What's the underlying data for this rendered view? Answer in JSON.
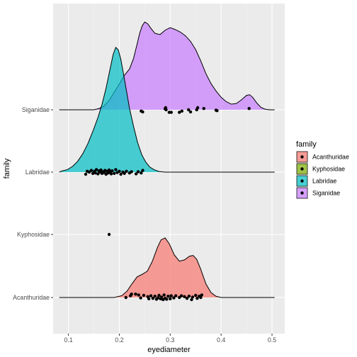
{
  "chart_data": {
    "type": "ridgeline",
    "xlabel": "eyediameter",
    "ylabel": "family",
    "xlim": [
      0.07,
      0.525
    ],
    "x_ticks": [
      "0.1",
      "0.2",
      "0.3",
      "0.4",
      "0.5"
    ],
    "x_tick_values": [
      0.1,
      0.2,
      0.3,
      0.4,
      0.5
    ],
    "legend": {
      "title": "family",
      "position": "right",
      "items": [
        "Acanthuridae",
        "Kyphosidae",
        "Labridae",
        "Siganidae"
      ]
    },
    "colors": {
      "Acanthuridae": "#F8766D",
      "Kyphosidae": "#7CAE00",
      "Labridae": "#00BFC4",
      "Siganidae": "#C77CFF",
      "panel": "#EBEBEB",
      "grid_major": "#FFFFFF",
      "grid_minor": "#F4F4F4"
    },
    "series": [
      {
        "name": "Acanthuridae",
        "baseline_x": [
          0.082,
          0.505
        ],
        "density": [
          [
            0.082,
            0
          ],
          [
            0.19,
            0
          ],
          [
            0.205,
            0.03
          ],
          [
            0.215,
            0.1
          ],
          [
            0.225,
            0.22
          ],
          [
            0.235,
            0.33
          ],
          [
            0.245,
            0.37
          ],
          [
            0.255,
            0.42
          ],
          [
            0.265,
            0.58
          ],
          [
            0.275,
            0.8
          ],
          [
            0.282,
            0.92
          ],
          [
            0.29,
            0.95
          ],
          [
            0.298,
            0.86
          ],
          [
            0.308,
            0.68
          ],
          [
            0.318,
            0.58
          ],
          [
            0.328,
            0.6
          ],
          [
            0.338,
            0.66
          ],
          [
            0.345,
            0.67
          ],
          [
            0.352,
            0.61
          ],
          [
            0.36,
            0.45
          ],
          [
            0.37,
            0.22
          ],
          [
            0.38,
            0.08
          ],
          [
            0.39,
            0.02
          ],
          [
            0.4,
            0
          ],
          [
            0.505,
            0
          ]
        ],
        "points": [
          {
            "x": 0.213,
            "jitter": 0.0
          },
          {
            "x": 0.222,
            "jitter": -0.4
          },
          {
            "x": 0.224,
            "jitter": -0.8
          },
          {
            "x": 0.232,
            "jitter": -0.8
          },
          {
            "x": 0.238,
            "jitter": -0.6
          },
          {
            "x": 0.242,
            "jitter": 0.1
          },
          {
            "x": 0.248,
            "jitter": -0.5
          },
          {
            "x": 0.256,
            "jitter": -0.2
          },
          {
            "x": 0.258,
            "jitter": 0.3
          },
          {
            "x": 0.262,
            "jitter": -0.4
          },
          {
            "x": 0.266,
            "jitter": 0.2
          },
          {
            "x": 0.27,
            "jitter": -0.3
          },
          {
            "x": 0.273,
            "jitter": 0.4
          },
          {
            "x": 0.276,
            "jitter": 0.1
          },
          {
            "x": 0.278,
            "jitter": -0.5
          },
          {
            "x": 0.281,
            "jitter": 0.3
          },
          {
            "x": 0.283,
            "jitter": -0.1
          },
          {
            "x": 0.286,
            "jitter": 0.5
          },
          {
            "x": 0.288,
            "jitter": -0.6
          },
          {
            "x": 0.29,
            "jitter": 0.2
          },
          {
            "x": 0.293,
            "jitter": 0.4
          },
          {
            "x": 0.296,
            "jitter": -0.3
          },
          {
            "x": 0.3,
            "jitter": 0.3
          },
          {
            "x": 0.302,
            "jitter": -0.4
          },
          {
            "x": 0.307,
            "jitter": 0.1
          },
          {
            "x": 0.311,
            "jitter": -0.4
          },
          {
            "x": 0.318,
            "jitter": 0.0
          },
          {
            "x": 0.322,
            "jitter": -0.4
          },
          {
            "x": 0.328,
            "jitter": -0.2
          },
          {
            "x": 0.333,
            "jitter": 0.2
          },
          {
            "x": 0.337,
            "jitter": -0.3
          },
          {
            "x": 0.342,
            "jitter": 0.5
          },
          {
            "x": 0.344,
            "jitter": -0.1
          },
          {
            "x": 0.35,
            "jitter": -0.5
          },
          {
            "x": 0.353,
            "jitter": 0.2
          },
          {
            "x": 0.357,
            "jitter": -0.3
          },
          {
            "x": 0.36,
            "jitter": 0.0
          },
          {
            "x": 0.362,
            "jitter": -0.6
          }
        ]
      },
      {
        "name": "Kyphosidae",
        "baseline_x": [],
        "density": [],
        "points": [
          {
            "x": 0.18,
            "jitter": 0.0
          }
        ]
      },
      {
        "name": "Labridae",
        "baseline_x": [
          0.082,
          0.505
        ],
        "density": [
          [
            0.082,
            0
          ],
          [
            0.088,
            0.02
          ],
          [
            0.098,
            0.04
          ],
          [
            0.108,
            0.09
          ],
          [
            0.118,
            0.17
          ],
          [
            0.128,
            0.29
          ],
          [
            0.138,
            0.45
          ],
          [
            0.148,
            0.65
          ],
          [
            0.158,
            0.87
          ],
          [
            0.166,
            1.08
          ],
          [
            0.174,
            1.34
          ],
          [
            0.182,
            1.65
          ],
          [
            0.188,
            1.88
          ],
          [
            0.193,
            1.99
          ],
          [
            0.198,
            1.95
          ],
          [
            0.203,
            1.8
          ],
          [
            0.208,
            1.58
          ],
          [
            0.214,
            1.3
          ],
          [
            0.22,
            1.02
          ],
          [
            0.228,
            0.73
          ],
          [
            0.236,
            0.47
          ],
          [
            0.244,
            0.28
          ],
          [
            0.252,
            0.16
          ],
          [
            0.26,
            0.08
          ],
          [
            0.268,
            0.04
          ],
          [
            0.278,
            0.01
          ],
          [
            0.29,
            0
          ],
          [
            0.505,
            0
          ]
        ],
        "points": [
          {
            "x": 0.134,
            "jitter": 0.5
          },
          {
            "x": 0.137,
            "jitter": -0.2
          },
          {
            "x": 0.141,
            "jitter": 0.0
          },
          {
            "x": 0.145,
            "jitter": -0.4
          },
          {
            "x": 0.148,
            "jitter": 0.3
          },
          {
            "x": 0.151,
            "jitter": -0.2
          },
          {
            "x": 0.153,
            "jitter": 0.2
          },
          {
            "x": 0.155,
            "jitter": -0.6
          },
          {
            "x": 0.158,
            "jitter": 0.4
          },
          {
            "x": 0.16,
            "jitter": -0.3
          },
          {
            "x": 0.162,
            "jitter": 0.0
          },
          {
            "x": 0.164,
            "jitter": -0.5
          },
          {
            "x": 0.166,
            "jitter": 0.3
          },
          {
            "x": 0.168,
            "jitter": -0.1
          },
          {
            "x": 0.17,
            "jitter": 0.1
          },
          {
            "x": 0.172,
            "jitter": -0.4
          },
          {
            "x": 0.174,
            "jitter": 0.5
          },
          {
            "x": 0.176,
            "jitter": -0.2
          },
          {
            "x": 0.178,
            "jitter": 0.2
          },
          {
            "x": 0.18,
            "jitter": -0.5
          },
          {
            "x": 0.182,
            "jitter": 0.0
          },
          {
            "x": 0.184,
            "jitter": 0.4
          },
          {
            "x": 0.186,
            "jitter": -0.3
          },
          {
            "x": 0.19,
            "jitter": 0.3
          },
          {
            "x": 0.193,
            "jitter": -0.6
          },
          {
            "x": 0.196,
            "jitter": 0.1
          },
          {
            "x": 0.2,
            "jitter": -0.2
          },
          {
            "x": 0.203,
            "jitter": 0.5
          },
          {
            "x": 0.207,
            "jitter": 0.0
          },
          {
            "x": 0.21,
            "jitter": 0.3
          },
          {
            "x": 0.214,
            "jitter": -0.2
          },
          {
            "x": 0.22,
            "jitter": 0.2
          },
          {
            "x": 0.224,
            "jitter": -0.1
          },
          {
            "x": 0.233,
            "jitter": 0.4
          },
          {
            "x": 0.237,
            "jitter": -0.1
          },
          {
            "x": 0.243,
            "jitter": 0.2
          },
          {
            "x": 0.246,
            "jitter": -0.4
          }
        ]
      },
      {
        "name": "Siganidae",
        "baseline_x": [
          0.082,
          0.505
        ],
        "density": [
          [
            0.082,
            0
          ],
          [
            0.15,
            0
          ],
          [
            0.16,
            0.02
          ],
          [
            0.17,
            0.06
          ],
          [
            0.18,
            0.15
          ],
          [
            0.19,
            0.28
          ],
          [
            0.2,
            0.41
          ],
          [
            0.21,
            0.55
          ],
          [
            0.22,
            0.65
          ],
          [
            0.228,
            0.82
          ],
          [
            0.235,
            1.05
          ],
          [
            0.24,
            1.22
          ],
          [
            0.245,
            1.34
          ],
          [
            0.25,
            1.4
          ],
          [
            0.256,
            1.37
          ],
          [
            0.262,
            1.3
          ],
          [
            0.27,
            1.22
          ],
          [
            0.28,
            1.2
          ],
          [
            0.29,
            1.27
          ],
          [
            0.3,
            1.31
          ],
          [
            0.31,
            1.28
          ],
          [
            0.32,
            1.24
          ],
          [
            0.33,
            1.18
          ],
          [
            0.34,
            1.09
          ],
          [
            0.35,
            0.96
          ],
          [
            0.36,
            0.78
          ],
          [
            0.37,
            0.58
          ],
          [
            0.38,
            0.42
          ],
          [
            0.39,
            0.3
          ],
          [
            0.4,
            0.2
          ],
          [
            0.41,
            0.13
          ],
          [
            0.42,
            0.09
          ],
          [
            0.43,
            0.1
          ],
          [
            0.44,
            0.16
          ],
          [
            0.45,
            0.23
          ],
          [
            0.456,
            0.24
          ],
          [
            0.462,
            0.2
          ],
          [
            0.47,
            0.11
          ],
          [
            0.478,
            0.04
          ],
          [
            0.486,
            0.01
          ],
          [
            0.495,
            0
          ],
          [
            0.505,
            0
          ]
        ],
        "points": [
          {
            "x": 0.243,
            "jitter": 0.3
          },
          {
            "x": 0.246,
            "jitter": 0.5
          },
          {
            "x": 0.29,
            "jitter": -0.2
          },
          {
            "x": 0.291,
            "jitter": -0.5
          },
          {
            "x": 0.292,
            "jitter": 0.0
          },
          {
            "x": 0.298,
            "jitter": 0.6
          },
          {
            "x": 0.302,
            "jitter": 0.6
          },
          {
            "x": 0.318,
            "jitter": 0.6
          },
          {
            "x": 0.323,
            "jitter": 0.3
          },
          {
            "x": 0.336,
            "jitter": 0.0
          },
          {
            "x": 0.34,
            "jitter": 0.5
          },
          {
            "x": 0.352,
            "jitter": 0.0
          },
          {
            "x": 0.354,
            "jitter": -0.5
          },
          {
            "x": 0.366,
            "jitter": -0.3
          },
          {
            "x": 0.39,
            "jitter": 0.1
          },
          {
            "x": 0.392,
            "jitter": 0.2
          },
          {
            "x": 0.455,
            "jitter": -0.3
          }
        ]
      }
    ]
  }
}
